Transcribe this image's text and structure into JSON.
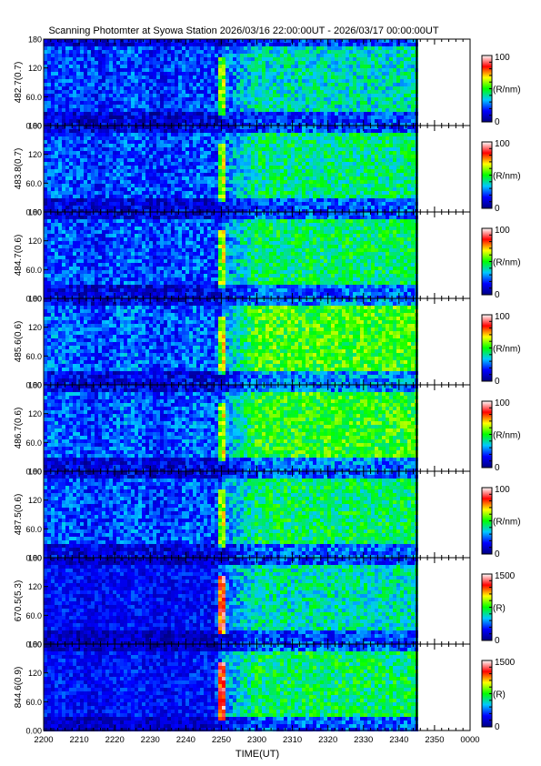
{
  "title": "Scanning Photomter at Syowa Station  2026/03/16 22:00:00UT - 2026/03/17 00:00:00UT",
  "chart_data": {
    "type": "heatmap",
    "title": "Scanning Photomter at Syowa Station  2026/03/16 22:00:00UT - 2026/03/17 00:00:00UT",
    "xlabel": "TIME(UT)",
    "x_ticks": [
      "2200",
      "2210",
      "2220",
      "2230",
      "2240",
      "2250",
      "2300",
      "2310",
      "2320",
      "2330",
      "2340",
      "2350",
      "0000"
    ],
    "x_range_minutes": [
      0,
      120
    ],
    "data_end_minutes": 105,
    "y_ticks": [
      "0.00",
      "60.0",
      "120",
      "180"
    ],
    "ylim": [
      0,
      180
    ],
    "colormap": [
      "#000080",
      "#0000ff",
      "#00c8ff",
      "#00ff00",
      "#ffff00",
      "#ff0000",
      "#ffffff"
    ],
    "panels": [
      {
        "label": "482.7(0.7)",
        "cbar_max": "100",
        "cbar_min": "0",
        "unit": "(R/nm)",
        "intensity": 0.35
      },
      {
        "label": "483.8(0.7)",
        "cbar_max": "100",
        "cbar_min": "0",
        "unit": "(R/nm)",
        "intensity": 0.45
      },
      {
        "label": "484.7(0.6)",
        "cbar_max": "100",
        "cbar_min": "0",
        "unit": "(R/nm)",
        "intensity": 0.5
      },
      {
        "label": "485.6(0.6)",
        "cbar_max": "100",
        "cbar_min": "0",
        "unit": "(R/nm)",
        "intensity": 0.68
      },
      {
        "label": "486.7(0.6)",
        "cbar_max": "100",
        "cbar_min": "0",
        "unit": "(R/nm)",
        "intensity": 0.64
      },
      {
        "label": "487.5(0.6)",
        "cbar_max": "100",
        "cbar_min": "0",
        "unit": "(R/nm)",
        "intensity": 0.5
      },
      {
        "label": "670.5(5.3)",
        "cbar_max": "1500",
        "cbar_min": "0",
        "unit": "(R)",
        "intensity": 0.38
      },
      {
        "label": "844.6(0.9)",
        "cbar_max": "1500",
        "cbar_min": "0",
        "unit": "(R)",
        "intensity": 0.5
      }
    ]
  }
}
